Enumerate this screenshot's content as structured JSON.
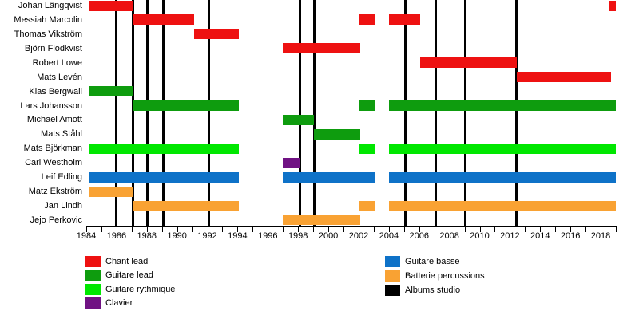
{
  "chart_data": {
    "type": "timeline",
    "description": "Band members timeline (Gantt-style) with studio album release lines",
    "x_axis": {
      "start_year": 1984,
      "end_year": 2019,
      "tick_every_years": 1,
      "label_every_years": 2,
      "year_labels": [
        "1984",
        "1986",
        "1988",
        "1990",
        "1992",
        "1994",
        "1996",
        "1998",
        "2000",
        "2002",
        "2004",
        "2006",
        "2008",
        "2010",
        "2012",
        "2014",
        "2016",
        "2018"
      ]
    },
    "albums_studio_years": [
      1986.0,
      1987.1,
      1988.05,
      1989.1,
      1992.1,
      1998.1,
      1999.05,
      2005.1,
      2007.1,
      2009.05,
      2012.45
    ],
    "members": [
      {
        "name": "Johan Längqvist",
        "role": "chant",
        "segments": [
          [
            1984.2,
            1987.1
          ],
          [
            2018.6,
            2019.0
          ]
        ]
      },
      {
        "name": "Messiah Marcolin",
        "role": "chant",
        "segments": [
          [
            1987.1,
            1991.15
          ],
          [
            2002.0,
            2003.1
          ],
          [
            2004.0,
            2006.05
          ]
        ]
      },
      {
        "name": "Thomas Vikström",
        "role": "chant",
        "segments": [
          [
            1991.15,
            1994.1
          ]
        ]
      },
      {
        "name": "Björn Flodkvist",
        "role": "chant",
        "segments": [
          [
            1997.0,
            2002.1
          ]
        ]
      },
      {
        "name": "Robert Lowe",
        "role": "chant",
        "segments": [
          [
            2006.05,
            2012.45
          ]
        ]
      },
      {
        "name": "Mats Levén",
        "role": "chant",
        "segments": [
          [
            2012.45,
            2018.7
          ]
        ]
      },
      {
        "name": "Klas Bergwall",
        "role": "lead",
        "segments": [
          [
            1984.2,
            1987.1
          ]
        ]
      },
      {
        "name": "Lars Johansson",
        "role": "lead",
        "segments": [
          [
            1987.1,
            1994.1
          ],
          [
            2002.0,
            2003.1
          ],
          [
            2004.0,
            2019.0
          ]
        ]
      },
      {
        "name": "Michael Amott",
        "role": "lead",
        "segments": [
          [
            1997.0,
            1999.05
          ]
        ]
      },
      {
        "name": "Mats Ståhl",
        "role": "lead",
        "segments": [
          [
            1999.05,
            2002.1
          ]
        ]
      },
      {
        "name": "Mats Björkman",
        "role": "rythmique",
        "segments": [
          [
            1984.2,
            1994.1
          ],
          [
            2002.0,
            2003.1
          ],
          [
            2004.0,
            2019.0
          ]
        ]
      },
      {
        "name": "Carl Westholm",
        "role": "clavier",
        "segments": [
          [
            1997.0,
            1998.1
          ]
        ]
      },
      {
        "name": "Leif Edling",
        "role": "basse",
        "segments": [
          [
            1984.2,
            1994.1
          ],
          [
            1997.0,
            2003.1
          ],
          [
            2004.0,
            2019.0
          ]
        ]
      },
      {
        "name": "Matz Ekström",
        "role": "batterie",
        "segments": [
          [
            1984.2,
            1987.1
          ]
        ]
      },
      {
        "name": "Jan Lindh",
        "role": "batterie",
        "segments": [
          [
            1987.1,
            1994.1
          ],
          [
            2002.0,
            2003.1
          ],
          [
            2004.0,
            2019.0
          ]
        ]
      },
      {
        "name": "Jejo Perkovic",
        "role": "batterie",
        "segments": [
          [
            1997.0,
            2002.1
          ]
        ]
      }
    ],
    "role_colors": {
      "chant": "#EE1111",
      "lead": "#0E9C0E",
      "rythmique": "#00E700",
      "clavier": "#701283",
      "basse": "#0E72C8",
      "batterie": "#F9A233",
      "albums": "#000000"
    },
    "legend": {
      "left_column": [
        {
          "id": "chant",
          "label": "Chant lead"
        },
        {
          "id": "lead",
          "label": "Guitare lead"
        },
        {
          "id": "rythmique",
          "label": "Guitare rythmique"
        },
        {
          "id": "clavier",
          "label": "Clavier"
        }
      ],
      "right_column": [
        {
          "id": "basse",
          "label": "Guitare basse"
        },
        {
          "id": "batterie",
          "label": "Batterie percussions"
        },
        {
          "id": "albums",
          "label": "Albums studio"
        }
      ]
    }
  }
}
